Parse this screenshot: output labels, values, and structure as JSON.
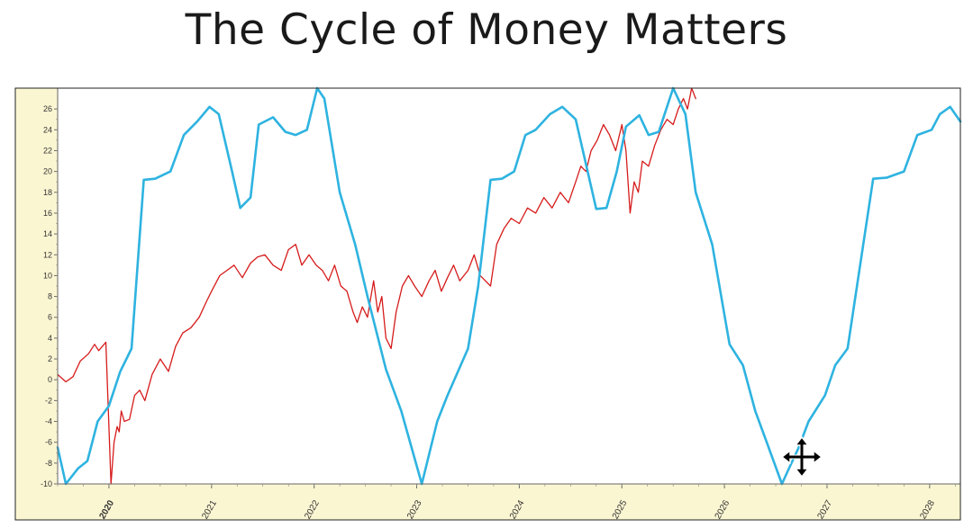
{
  "title": "The Cycle of Money Matters",
  "cursor_icon": "move-cursor-icon",
  "colors": {
    "cycle": "#2eb3e0",
    "price": "#d61b1b",
    "axis_band": "#fbf6d2",
    "highlight_tick": "#c01818"
  },
  "chart_data": {
    "type": "line",
    "ylim": [
      -10,
      28
    ],
    "xlim": [
      2019.5,
      2028.3
    ],
    "yticks": [
      26,
      24,
      22,
      20,
      18,
      16,
      14,
      12,
      10,
      8,
      6,
      4,
      2,
      0,
      -2,
      -4,
      -6,
      -8,
      -10
    ],
    "xticks": [
      "2020",
      "2021",
      "2022",
      "2023",
      "2024",
      "2025",
      "2026",
      "2027",
      "2028"
    ],
    "highlighted_xtick": "2020",
    "grid": false,
    "series": [
      {
        "key": "cycle",
        "x": [
          2019.5,
          2019.58,
          2019.7,
          2019.79,
          2019.89,
          2020.0,
          2020.11,
          2020.22,
          2020.34,
          2020.45,
          2020.6,
          2020.73,
          2020.86,
          2020.98,
          2021.07,
          2021.2,
          2021.28,
          2021.38,
          2021.46,
          2021.6,
          2021.72,
          2021.82,
          2021.93,
          2022.03,
          2022.1,
          2022.25,
          2022.4,
          2022.52,
          2022.7,
          2022.85,
          2022.95,
          2023.05,
          2023.2,
          2023.3,
          2023.5,
          2023.6,
          2023.72,
          2023.83,
          2023.95,
          2024.06,
          2024.16,
          2024.3,
          2024.42,
          2024.55,
          2024.75,
          2024.85,
          2024.95,
          2025.04,
          2025.17,
          2025.26,
          2025.36,
          2025.5,
          2025.62,
          2025.72,
          2025.88,
          2026.05,
          2026.18,
          2026.3,
          2026.42,
          2026.56,
          2026.63,
          2026.72,
          2026.82,
          2026.98,
          2027.08,
          2027.2,
          2027.3,
          2027.45,
          2027.58,
          2027.75,
          2027.88,
          2028.02,
          2028.1,
          2028.2,
          2028.3
        ],
        "y": [
          -6.5,
          -10,
          -8.5,
          -7.8,
          -4,
          -2.5,
          0.8,
          3,
          19.2,
          19.3,
          20,
          23.5,
          24.8,
          26.2,
          25.5,
          20,
          16.5,
          17.5,
          24.5,
          25.2,
          23.8,
          23.5,
          24,
          28,
          27,
          18,
          13,
          8,
          1,
          -3,
          -6.5,
          -10,
          -4,
          -1.5,
          3,
          9,
          19.2,
          19.3,
          20,
          23.5,
          24,
          25.5,
          26.2,
          25,
          16.4,
          16.5,
          20,
          24.3,
          25.4,
          23.5,
          23.8,
          28,
          25.5,
          18,
          13,
          3.4,
          1.4,
          -3,
          -6.2,
          -10,
          -8.5,
          -6.6,
          -4,
          -1.5,
          1.4,
          3,
          9.5,
          19.3,
          19.4,
          20,
          23.5,
          24,
          25.5,
          26.2,
          24.8
        ]
      },
      {
        "key": "price",
        "x": [
          2019.5,
          2019.58,
          2019.65,
          2019.72,
          2019.8,
          2019.86,
          2019.9,
          2019.97,
          2020.02,
          2020.05,
          2020.08,
          2020.1,
          2020.12,
          2020.15,
          2020.2,
          2020.25,
          2020.3,
          2020.35,
          2020.42,
          2020.5,
          2020.58,
          2020.65,
          2020.72,
          2020.8,
          2020.88,
          2020.95,
          2021.0,
          2021.08,
          2021.15,
          2021.22,
          2021.3,
          2021.38,
          2021.45,
          2021.52,
          2021.6,
          2021.68,
          2021.75,
          2021.82,
          2021.88,
          2021.95,
          2022.02,
          2022.08,
          2022.14,
          2022.2,
          2022.26,
          2022.32,
          2022.38,
          2022.42,
          2022.47,
          2022.52,
          2022.58,
          2022.62,
          2022.66,
          2022.7,
          2022.75,
          2022.8,
          2022.86,
          2022.92,
          2022.98,
          2023.05,
          2023.12,
          2023.18,
          2023.24,
          2023.3,
          2023.36,
          2023.42,
          2023.5,
          2023.56,
          2023.62,
          2023.67,
          2023.72,
          2023.78,
          2023.85,
          2023.92,
          2024.0,
          2024.08,
          2024.16,
          2024.24,
          2024.32,
          2024.4,
          2024.48,
          2024.55,
          2024.6,
          2024.65,
          2024.7,
          2024.76,
          2024.82,
          2024.88,
          2024.94,
          2025.0,
          2025.04,
          2025.08,
          2025.12,
          2025.16,
          2025.2,
          2025.26,
          2025.32,
          2025.38,
          2025.44,
          2025.5,
          2025.55,
          2025.6,
          2025.64,
          2025.68,
          2025.72
        ],
        "y": [
          0.5,
          -0.2,
          0.3,
          1.8,
          2.5,
          3.4,
          2.8,
          3.6,
          -10,
          -6,
          -4.5,
          -5,
          -3,
          -4,
          -3.8,
          -1.5,
          -1,
          -2,
          0.5,
          2,
          0.8,
          3.2,
          4.5,
          5,
          6,
          7.5,
          8.5,
          10,
          10.5,
          11,
          9.8,
          11.2,
          11.8,
          12,
          11,
          10.5,
          12.5,
          13,
          11,
          12,
          11,
          10.5,
          9.5,
          11,
          9,
          8.5,
          6.5,
          5.5,
          7,
          6,
          9.5,
          6.5,
          8,
          4,
          3,
          6.5,
          9,
          10,
          9,
          8,
          9.5,
          10.5,
          8.5,
          9.8,
          11,
          9.5,
          10.5,
          12,
          10,
          9.5,
          9,
          13,
          14.5,
          15.5,
          15,
          16.5,
          16,
          17.5,
          16.5,
          18,
          17,
          19,
          20.5,
          20,
          22,
          23,
          24.5,
          23.5,
          22,
          24.5,
          22,
          16,
          19,
          18,
          21,
          20.5,
          22.5,
          24,
          25,
          24.5,
          26,
          27,
          26,
          28,
          27
        ]
      }
    ]
  }
}
